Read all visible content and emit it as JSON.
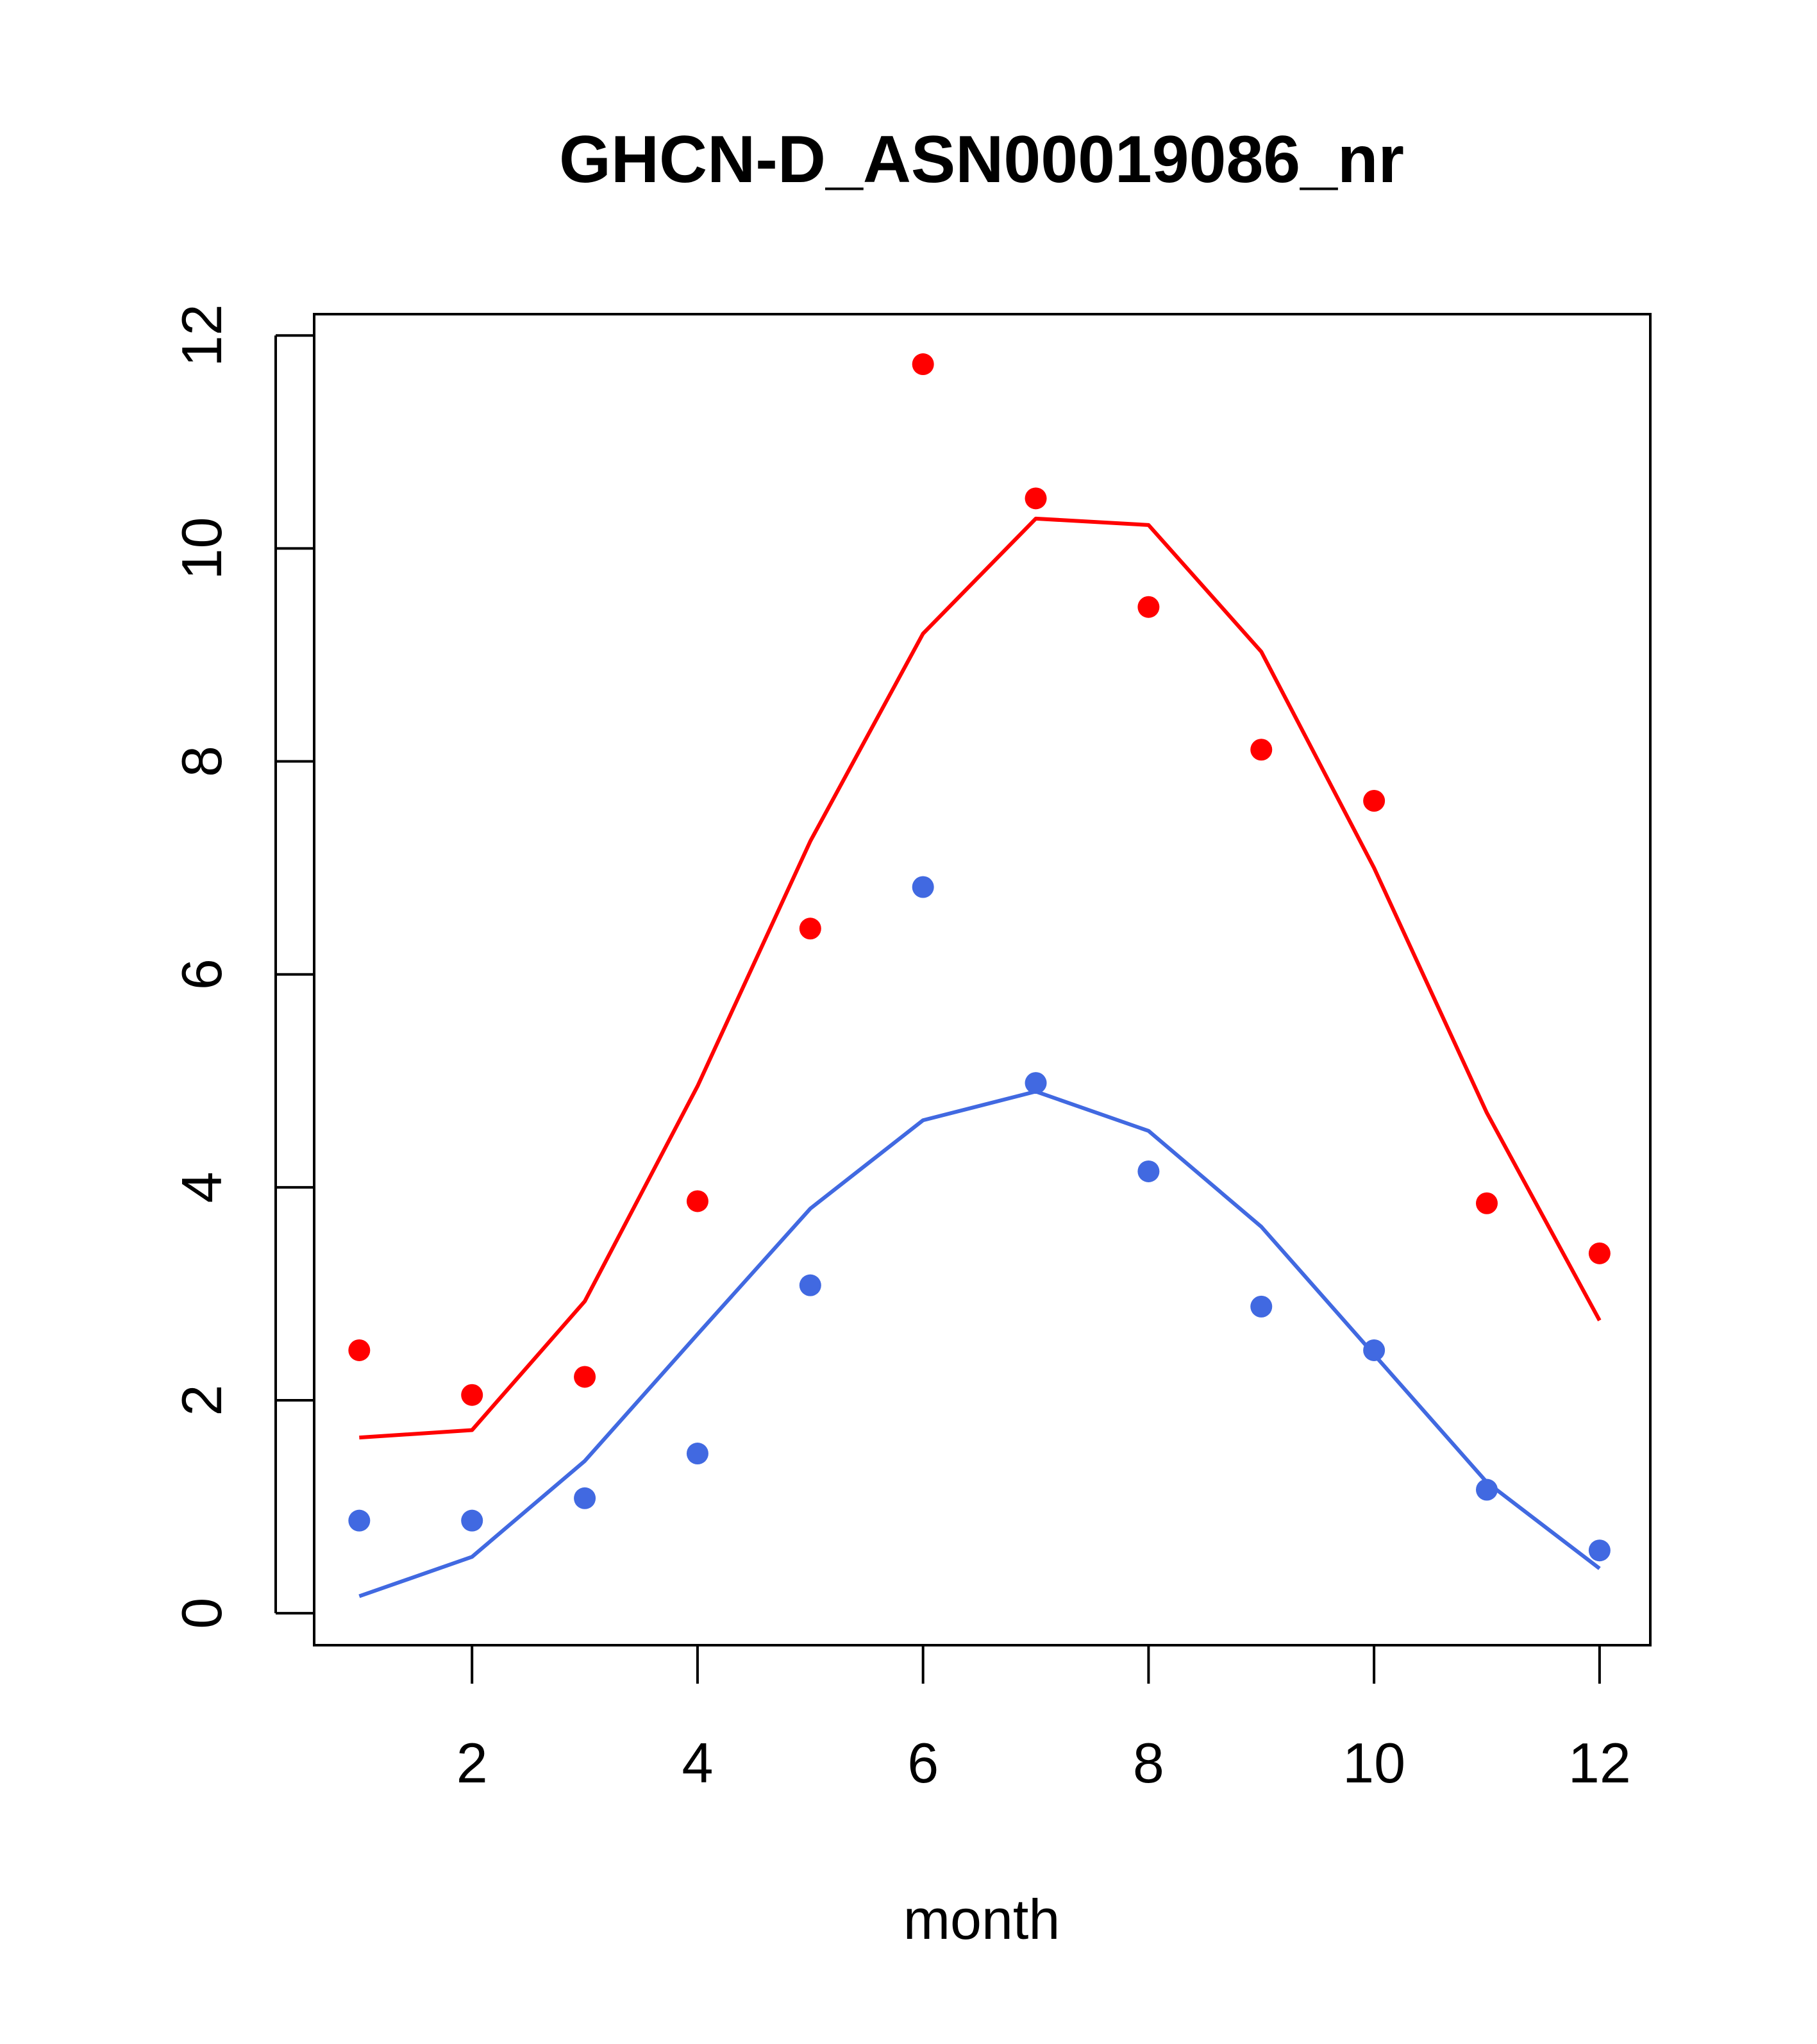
{
  "chart_data": {
    "type": "line",
    "title": "GHCN-D_ASN00019086_nr",
    "xlabel": "month",
    "ylabel": "",
    "xlim": [
      0.6,
      12.45
    ],
    "ylim": [
      -0.3,
      12.2
    ],
    "xticks": [
      2,
      4,
      6,
      8,
      10,
      12
    ],
    "yticks": [
      0,
      2,
      4,
      6,
      8,
      10,
      12
    ],
    "grid": false,
    "series": [
      {
        "color": "#ff0000",
        "line": {
          "x": [
            1,
            2,
            3,
            4,
            5,
            6,
            7,
            8,
            9,
            10,
            11,
            12
          ],
          "y": [
            1.65,
            1.72,
            2.93,
            4.95,
            7.25,
            9.2,
            10.28,
            10.22,
            9.03,
            7.0,
            4.7,
            2.75
          ]
        },
        "points": {
          "x": [
            1,
            2,
            3,
            4,
            5,
            6,
            7,
            8,
            9,
            10,
            11,
            12
          ],
          "y": [
            2.47,
            2.05,
            2.22,
            3.87,
            6.43,
            11.73,
            10.47,
            9.45,
            8.11,
            7.63,
            3.85,
            3.38
          ]
        }
      },
      {
        "color": "#4169e1",
        "line": {
          "x": [
            1,
            2,
            3,
            4,
            5,
            6,
            7,
            8,
            9,
            10,
            11,
            12
          ],
          "y": [
            0.16,
            0.53,
            1.43,
            2.62,
            3.8,
            4.63,
            4.9,
            4.53,
            3.63,
            2.43,
            1.23,
            0.42
          ]
        },
        "points": {
          "x": [
            1,
            2,
            3,
            4,
            5,
            6,
            7,
            8,
            9,
            10,
            11,
            12
          ],
          "y": [
            0.87,
            0.87,
            1.08,
            1.5,
            3.08,
            6.82,
            4.98,
            4.15,
            2.88,
            2.47,
            1.16,
            0.59
          ]
        }
      }
    ]
  }
}
